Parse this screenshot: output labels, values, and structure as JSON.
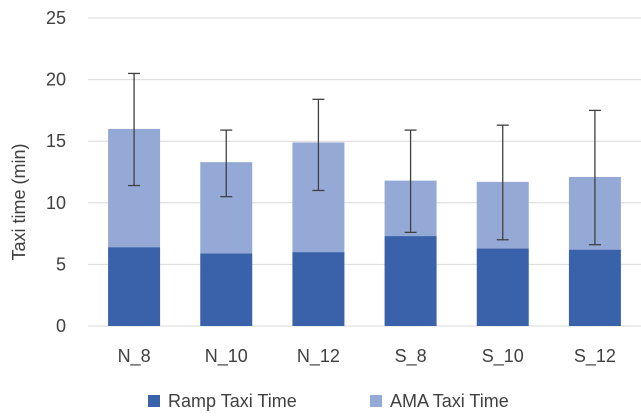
{
  "chart_data": {
    "type": "bar",
    "stacked": true,
    "categories": [
      "N_8",
      "N_10",
      "N_12",
      "S_8",
      "S_10",
      "S_12"
    ],
    "series": [
      {
        "name": "Ramp Taxi Time",
        "color": "#3a62ab",
        "values": [
          6.4,
          5.9,
          6.0,
          7.3,
          6.3,
          6.2
        ]
      },
      {
        "name": "AMA Taxi Time",
        "color": "#95a9d6",
        "values": [
          9.6,
          7.4,
          8.9,
          4.5,
          5.4,
          5.9
        ]
      }
    ],
    "error_bars": {
      "color": "#404040",
      "low": [
        11.4,
        10.5,
        11.0,
        7.6,
        7.0,
        6.6
      ],
      "high": [
        20.5,
        15.9,
        18.4,
        15.9,
        16.3,
        17.5
      ]
    },
    "xlabel": "",
    "ylabel": "Taxi time (min)",
    "ylim": [
      0,
      25
    ],
    "yticks": [
      0,
      5,
      10,
      15,
      20,
      25
    ],
    "grid": true,
    "grid_color": "#d9d9d9",
    "legend_position": "bottom"
  }
}
